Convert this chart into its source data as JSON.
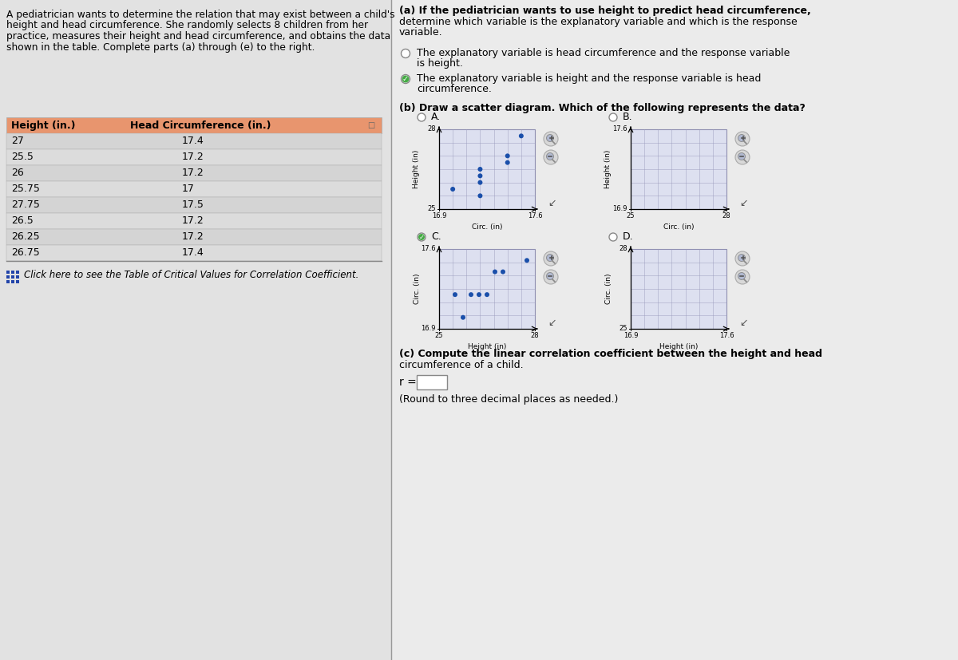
{
  "intro_text_lines": [
    "A pediatrician wants to determine the relation that may exist between a child's",
    "height and head circumference. She randomly selects 8 children from her",
    "practice, measures their height and head circumference, and obtains the data",
    "shown in the table. Complete parts (a) through (e) to the right."
  ],
  "table_header": [
    "Height (in.)",
    "Head Circumference (in.)"
  ],
  "table_data": [
    [
      27,
      17.4
    ],
    [
      25.5,
      17.2
    ],
    [
      26,
      17.2
    ],
    [
      25.75,
      17
    ],
    [
      27.75,
      17.5
    ],
    [
      26.5,
      17.2
    ],
    [
      26.25,
      17.2
    ],
    [
      26.75,
      17.4
    ]
  ],
  "click_here_text": "Click here to see the Table of Critical Values for Correlation Coefficient.",
  "part_a_lines": [
    "(a) If the pediatrician wants to use height to predict head circumference,",
    "determine which variable is the explanatory variable and which is the response",
    "variable."
  ],
  "option1_lines": [
    "The explanatory variable is head circumference and the response variable",
    "is height."
  ],
  "option2_lines": [
    "The explanatory variable is height and the response variable is head",
    "circumference."
  ],
  "part_b_text": "(b) Draw a scatter diagram. Which of the following represents the data?",
  "scatter_labels": [
    "A.",
    "B.",
    "C.",
    "D."
  ],
  "part_c_lines": [
    "(c) Compute the linear correlation coefficient between the height and head",
    "circumference of a child."
  ],
  "r_label": "r =",
  "round_text": "(Round to three decimal places as needed.)",
  "bg_color": "#c8c8c8",
  "left_bg": "#e2e2e2",
  "right_bg": "#ebebeb",
  "divider_color": "#999999",
  "table_header_color": "#e8956e",
  "table_row_color_odd": "#d4d4d4",
  "table_row_color_even": "#dcdcdc",
  "dot_color": "#1a4faa",
  "plot_bg": "#dde0f0",
  "grid_color": "#9999bb",
  "link_color": "#2244aa"
}
